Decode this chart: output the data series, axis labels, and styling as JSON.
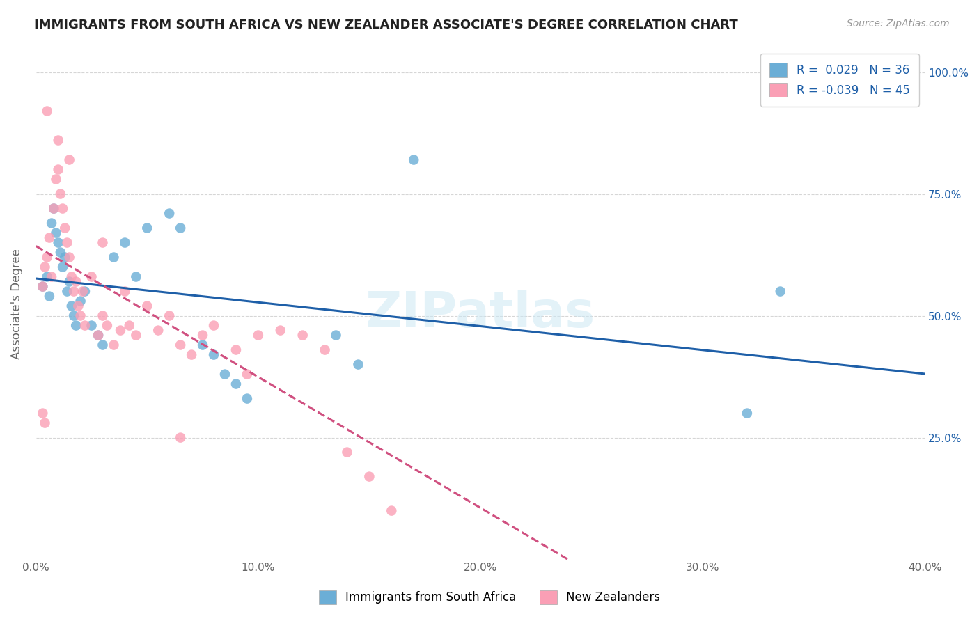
{
  "title": "IMMIGRANTS FROM SOUTH AFRICA VS NEW ZEALANDER ASSOCIATE'S DEGREE CORRELATION CHART",
  "source": "Source: ZipAtlas.com",
  "ylabel": "Associate's Degree",
  "xlim": [
    0.0,
    0.4
  ],
  "ylim": [
    0.0,
    1.05
  ],
  "ytick_labels": [
    "25.0%",
    "50.0%",
    "75.0%",
    "100.0%"
  ],
  "ytick_values": [
    0.25,
    0.5,
    0.75,
    1.0
  ],
  "xtick_labels": [
    "0.0%",
    "10.0%",
    "20.0%",
    "30.0%",
    "40.0%"
  ],
  "xtick_values": [
    0.0,
    0.1,
    0.2,
    0.3,
    0.4
  ],
  "legend_blue_label": "Immigrants from South Africa",
  "legend_pink_label": "New Zealanders",
  "R_blue": 0.029,
  "N_blue": 36,
  "R_pink": -0.039,
  "N_pink": 45,
  "blue_color": "#6baed6",
  "pink_color": "#fa9fb5",
  "blue_line_color": "#1e5fa8",
  "pink_line_color": "#d05080",
  "watermark": "ZIPatlas",
  "blue_scatter_x": [
    0.003,
    0.005,
    0.006,
    0.007,
    0.008,
    0.009,
    0.01,
    0.011,
    0.012,
    0.013,
    0.014,
    0.015,
    0.016,
    0.017,
    0.018,
    0.02,
    0.022,
    0.025,
    0.028,
    0.03,
    0.035,
    0.04,
    0.045,
    0.05,
    0.06,
    0.065,
    0.075,
    0.08,
    0.085,
    0.09,
    0.095,
    0.135,
    0.145,
    0.17,
    0.32,
    0.335
  ],
  "blue_scatter_y": [
    0.56,
    0.58,
    0.54,
    0.69,
    0.72,
    0.67,
    0.65,
    0.63,
    0.6,
    0.62,
    0.55,
    0.57,
    0.52,
    0.5,
    0.48,
    0.53,
    0.55,
    0.48,
    0.46,
    0.44,
    0.62,
    0.65,
    0.58,
    0.68,
    0.71,
    0.68,
    0.44,
    0.42,
    0.38,
    0.36,
    0.33,
    0.46,
    0.4,
    0.82,
    0.3,
    0.55
  ],
  "pink_scatter_x": [
    0.003,
    0.004,
    0.005,
    0.006,
    0.007,
    0.008,
    0.009,
    0.01,
    0.011,
    0.012,
    0.013,
    0.014,
    0.015,
    0.016,
    0.017,
    0.018,
    0.019,
    0.02,
    0.021,
    0.022,
    0.025,
    0.028,
    0.03,
    0.032,
    0.035,
    0.038,
    0.04,
    0.042,
    0.045,
    0.05,
    0.055,
    0.06,
    0.065,
    0.07,
    0.075,
    0.08,
    0.09,
    0.095,
    0.1,
    0.11,
    0.12,
    0.13,
    0.14,
    0.15,
    0.16
  ],
  "pink_scatter_y": [
    0.56,
    0.6,
    0.62,
    0.66,
    0.58,
    0.72,
    0.78,
    0.8,
    0.75,
    0.72,
    0.68,
    0.65,
    0.62,
    0.58,
    0.55,
    0.57,
    0.52,
    0.5,
    0.55,
    0.48,
    0.58,
    0.46,
    0.5,
    0.48,
    0.44,
    0.47,
    0.55,
    0.48,
    0.46,
    0.52,
    0.47,
    0.5,
    0.44,
    0.42,
    0.46,
    0.48,
    0.43,
    0.38,
    0.46,
    0.47,
    0.46,
    0.43,
    0.22,
    0.17,
    0.1
  ],
  "pink_outlier_x": [
    0.003,
    0.004,
    0.005,
    0.01,
    0.015,
    0.03,
    0.065
  ],
  "pink_outlier_y": [
    0.3,
    0.28,
    0.92,
    0.86,
    0.82,
    0.65,
    0.25
  ]
}
